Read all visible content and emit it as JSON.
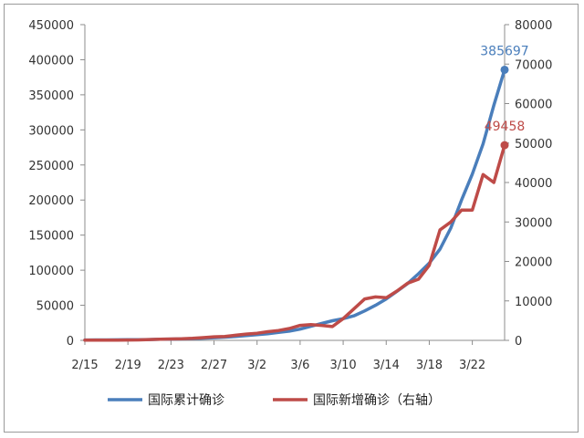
{
  "chart_data": {
    "type": "line",
    "x": [
      "2/15",
      "2/16",
      "2/17",
      "2/18",
      "2/19",
      "2/20",
      "2/21",
      "2/22",
      "2/23",
      "2/24",
      "2/25",
      "2/26",
      "2/27",
      "2/28",
      "2/29",
      "3/1",
      "3/2",
      "3/3",
      "3/4",
      "3/5",
      "3/6",
      "3/7",
      "3/8",
      "3/9",
      "3/10",
      "3/11",
      "3/12",
      "3/13",
      "3/14",
      "3/15",
      "3/16",
      "3/17",
      "3/18",
      "3/19",
      "3/20",
      "3/21",
      "3/22",
      "3/23",
      "3/24",
      "3/25"
    ],
    "x_tick_labels": [
      "2/15",
      "2/19",
      "2/23",
      "2/27",
      "3/2",
      "3/6",
      "3/10",
      "3/14",
      "3/18",
      "3/22"
    ],
    "left_axis": {
      "ylim": [
        0,
        450000
      ],
      "ticks": [
        "0",
        "50000",
        "100000",
        "150000",
        "200000",
        "250000",
        "300000",
        "350000",
        "400000",
        "450000"
      ]
    },
    "right_axis": {
      "ylim": [
        0,
        80000
      ],
      "ticks": [
        "0",
        "10000",
        "20000",
        "30000",
        "40000",
        "50000",
        "60000",
        "70000",
        "80000"
      ]
    },
    "series": [
      {
        "name": "国际累计确诊",
        "axis": "left",
        "color": "#4a7ebb",
        "values": [
          500,
          600,
          700,
          800,
          900,
          1000,
          1200,
          1500,
          1800,
          2100,
          2500,
          3100,
          3800,
          4600,
          5500,
          6700,
          8000,
          9500,
          11300,
          13200,
          16000,
          20000,
          24000,
          28000,
          31000,
          35000,
          42000,
          50000,
          59000,
          70000,
          81000,
          95000,
          110000,
          130000,
          160000,
          200000,
          237000,
          280000,
          335000,
          385697
        ],
        "end_label": "385697"
      },
      {
        "name": "国际新增确诊（右轴）",
        "axis": "right",
        "color": "#be4b48",
        "values": [
          60,
          60,
          70,
          80,
          90,
          120,
          200,
          300,
          350,
          400,
          500,
          700,
          900,
          1000,
          1300,
          1600,
          1800,
          2200,
          2500,
          3000,
          3800,
          4000,
          3800,
          3500,
          5500,
          8000,
          10500,
          11000,
          10800,
          12500,
          14500,
          15500,
          19000,
          28000,
          30000,
          33000,
          33000,
          42000,
          40000,
          49458
        ],
        "end_label": "49458"
      }
    ],
    "legend_position": "bottom"
  }
}
